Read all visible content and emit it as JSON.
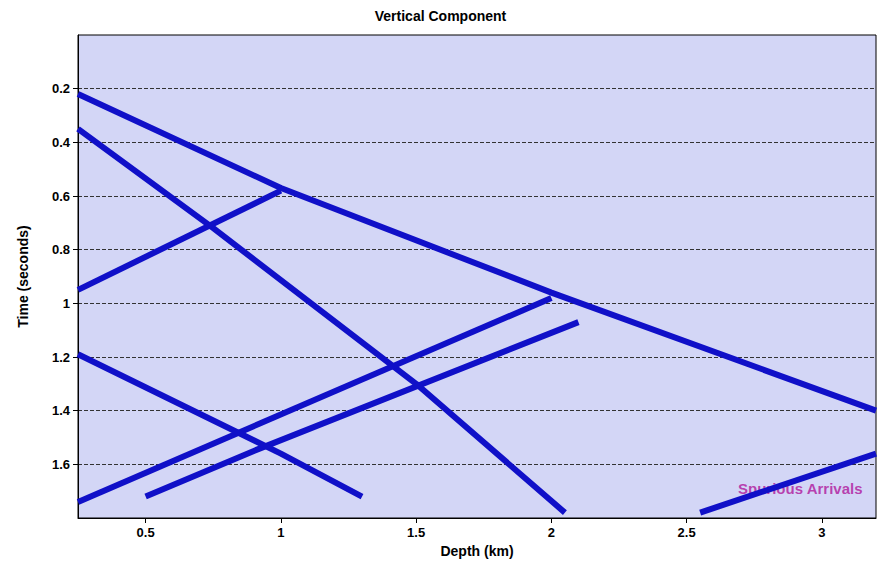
{
  "chart_data": {
    "type": "line",
    "title": "Vertical Component",
    "x_label": "Depth (km)",
    "y_label": "Time (seconds)",
    "xlim": [
      0.25,
      3.2
    ],
    "xticks": [
      0.5,
      1,
      1.5,
      2,
      2.5,
      3
    ],
    "ylim": [
      0,
      1.8
    ],
    "yticks": [
      0.2,
      0.4,
      0.6,
      0.8,
      1,
      1.2,
      1.4,
      1.6
    ],
    "grid": true,
    "series": [
      {
        "color": "#1010c8",
        "x": [
          0.25,
          1.0,
          2.0,
          3.2
        ],
        "values": [
          0.22,
          0.57,
          0.96,
          1.4
        ]
      },
      {
        "color": "#1010c8",
        "x": [
          0.25,
          0.75,
          1.5,
          2.05
        ],
        "values": [
          0.35,
          0.72,
          1.3,
          1.78
        ]
      },
      {
        "color": "#1010c8",
        "x": [
          1.0,
          0.25
        ],
        "values": [
          0.58,
          0.95
        ]
      },
      {
        "color": "#1010c8",
        "x": [
          2.0,
          0.25
        ],
        "values": [
          0.98,
          1.74
        ]
      },
      {
        "color": "#1010c8",
        "x": [
          2.1,
          0.9,
          0.5
        ],
        "values": [
          1.07,
          1.55,
          1.72
        ]
      },
      {
        "color": "#1010c8",
        "x": [
          0.25,
          1.0,
          1.3
        ],
        "values": [
          1.19,
          1.56,
          1.72
        ]
      },
      {
        "color": "#1010c8",
        "x": [
          2.55,
          3.2
        ],
        "values": [
          1.78,
          1.56
        ]
      }
    ],
    "annotations": [
      {
        "text": "Spurious Arrivals",
        "x": 2.92,
        "y": 1.69,
        "color": "#b0179c"
      }
    ]
  }
}
